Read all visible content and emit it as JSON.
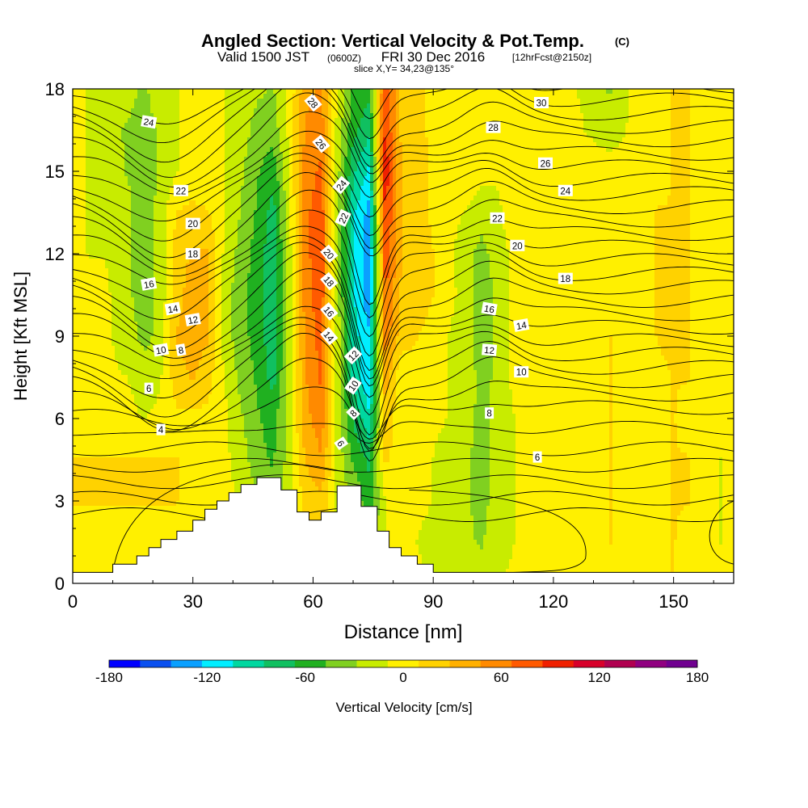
{
  "header": {
    "title": "Angled Section: Vertical Velocity & Pot.Temp.",
    "title_unit": "(C)",
    "valid_prefix": "Valid 1500 JST",
    "valid_utc": "(0600Z)",
    "valid_date": "FRI 30 Dec 2016",
    "forecast": "[12hrFcst@2150z]",
    "slice": "slice X,Y= 34,23@135°"
  },
  "chart_data": {
    "type": "heatmap",
    "title": "Angled Section: Vertical Velocity & Pot.Temp.",
    "xlabel": "Distance [nm]",
    "ylabel": "Height [Kft MSL]",
    "xlim": [
      0,
      165
    ],
    "ylim": [
      0,
      18
    ],
    "x_ticks": [
      0,
      30,
      60,
      90,
      120,
      150
    ],
    "y_ticks": [
      0,
      3,
      6,
      9,
      12,
      15,
      18
    ],
    "colorbar": {
      "label": "Vertical Velocity [cm/s]",
      "tick_values": [
        -180,
        -120,
        -60,
        0,
        60,
        120,
        180
      ],
      "bounds": [
        -180,
        180
      ],
      "colors": [
        "#0000ff",
        "#0a50f0",
        "#0aa0ff",
        "#00eeff",
        "#00d8a0",
        "#10c060",
        "#20b020",
        "#80d020",
        "#c8ec00",
        "#fff000",
        "#ffd200",
        "#ffb000",
        "#ff8a00",
        "#ff5a00",
        "#f02000",
        "#d8002a",
        "#b00050",
        "#900080",
        "#700090"
      ]
    },
    "vertical_velocity_cm_s": {
      "x": [
        0,
        4,
        8,
        14,
        18,
        22,
        26,
        30,
        34,
        38,
        42,
        46,
        50,
        54,
        58,
        62,
        66,
        70,
        74,
        78,
        82,
        86,
        90,
        94,
        98,
        102,
        106,
        110,
        114,
        118,
        122,
        126,
        130,
        134,
        138,
        142,
        146,
        150,
        154,
        158,
        162,
        165
      ],
      "y": [
        0,
        1.5,
        3,
        4.5,
        6,
        7.5,
        9,
        10.5,
        12,
        13.5,
        15,
        16.5,
        18
      ],
      "rows": [
        [
          5,
          5,
          5,
          5,
          5,
          5,
          5,
          5,
          5,
          5,
          5,
          5,
          5,
          5,
          5,
          5,
          5,
          5,
          5,
          5,
          5,
          -5,
          -10,
          -10,
          -15,
          -20,
          -10,
          -5,
          -5,
          -5,
          -5,
          5,
          5,
          5,
          -5,
          -5,
          5,
          10,
          5,
          -5,
          -5,
          -5
        ],
        [
          5,
          5,
          5,
          5,
          5,
          5,
          5,
          5,
          5,
          5,
          5,
          -5,
          -25,
          -10,
          10,
          10,
          -10,
          -20,
          -40,
          -10,
          -5,
          -10,
          -15,
          -20,
          -25,
          -30,
          -20,
          -10,
          -5,
          -5,
          -5,
          5,
          5,
          10,
          5,
          -5,
          5,
          10,
          5,
          -5,
          -10,
          -5
        ],
        [
          10,
          10,
          10,
          10,
          10,
          10,
          10,
          5,
          5,
          -5,
          -10,
          -25,
          -40,
          -15,
          15,
          25,
          -15,
          -30,
          -60,
          -10,
          -5,
          -5,
          -10,
          -20,
          -25,
          -35,
          -20,
          -10,
          -5,
          -5,
          -5,
          5,
          5,
          10,
          5,
          -5,
          5,
          10,
          10,
          -5,
          -10,
          -5
        ],
        [
          10,
          10,
          10,
          10,
          10,
          10,
          10,
          5,
          5,
          -5,
          -20,
          -40,
          -50,
          -20,
          30,
          45,
          -15,
          -50,
          -70,
          15,
          -5,
          -5,
          -10,
          -20,
          -25,
          -35,
          -20,
          -10,
          -5,
          -5,
          -5,
          5,
          5,
          10,
          5,
          -5,
          5,
          10,
          10,
          -5,
          -10,
          -5
        ],
        [
          5,
          5,
          5,
          -5,
          -10,
          -5,
          5,
          5,
          5,
          -5,
          -25,
          -45,
          -55,
          -20,
          40,
          60,
          -15,
          -70,
          -100,
          25,
          -5,
          -5,
          -5,
          -10,
          -20,
          -35,
          -20,
          -10,
          -5,
          -5,
          -5,
          5,
          5,
          10,
          5,
          -5,
          5,
          10,
          5,
          -5,
          -5,
          -5
        ],
        [
          5,
          5,
          -5,
          -10,
          -20,
          -10,
          20,
          30,
          15,
          -10,
          -35,
          -50,
          -75,
          -20,
          45,
          70,
          -15,
          -90,
          -120,
          40,
          -5,
          5,
          5,
          -10,
          -15,
          -35,
          -25,
          -5,
          5,
          5,
          5,
          5,
          5,
          10,
          5,
          -5,
          5,
          10,
          10,
          5,
          -5,
          -5
        ],
        [
          -5,
          -5,
          -5,
          -20,
          -35,
          -20,
          30,
          40,
          30,
          -20,
          -40,
          -55,
          -80,
          -20,
          50,
          75,
          -15,
          -95,
          -120,
          60,
          20,
          10,
          5,
          -10,
          -20,
          -40,
          -25,
          -5,
          5,
          5,
          5,
          5,
          5,
          10,
          5,
          5,
          10,
          15,
          10,
          5,
          -5,
          -5
        ],
        [
          -5,
          -5,
          -5,
          -25,
          -40,
          -20,
          20,
          40,
          30,
          -20,
          -40,
          -60,
          -80,
          -20,
          55,
          80,
          -20,
          -100,
          -140,
          70,
          25,
          15,
          10,
          -5,
          -15,
          -40,
          -25,
          -5,
          5,
          5,
          5,
          5,
          5,
          5,
          5,
          5,
          10,
          15,
          10,
          5,
          -5,
          -5
        ],
        [
          -5,
          -10,
          -10,
          -25,
          -40,
          -20,
          20,
          30,
          30,
          -15,
          -35,
          -55,
          -80,
          -20,
          60,
          80,
          -20,
          -100,
          -140,
          80,
          30,
          20,
          10,
          -5,
          -20,
          -35,
          -20,
          -5,
          5,
          5,
          5,
          5,
          5,
          5,
          5,
          5,
          10,
          15,
          10,
          5,
          -5,
          -5
        ],
        [
          -5,
          -10,
          -15,
          -25,
          -40,
          -20,
          10,
          15,
          10,
          -10,
          -30,
          -50,
          -75,
          -15,
          60,
          80,
          -20,
          -100,
          -130,
          90,
          30,
          20,
          5,
          -5,
          -10,
          -20,
          -15,
          5,
          5,
          5,
          5,
          5,
          5,
          5,
          5,
          5,
          10,
          10,
          10,
          5,
          -5,
          -5
        ],
        [
          -5,
          -10,
          -20,
          -30,
          -40,
          -25,
          -10,
          -5,
          -5,
          -10,
          -25,
          -45,
          -60,
          -10,
          55,
          70,
          -20,
          -80,
          -110,
          100,
          30,
          20,
          5,
          5,
          5,
          -5,
          -5,
          5,
          5,
          5,
          5,
          5,
          5,
          5,
          5,
          5,
          5,
          10,
          10,
          5,
          -5,
          -5
        ],
        [
          -5,
          -10,
          -25,
          -30,
          -35,
          -25,
          -10,
          -5,
          -5,
          -10,
          -20,
          -35,
          -40,
          -5,
          50,
          60,
          -15,
          -60,
          -80,
          90,
          25,
          15,
          5,
          5,
          5,
          5,
          5,
          5,
          5,
          5,
          5,
          -5,
          -15,
          -25,
          -10,
          5,
          5,
          10,
          10,
          5,
          -5,
          -5
        ],
        [
          -5,
          -10,
          -20,
          -25,
          -30,
          -20,
          -10,
          -5,
          -5,
          -10,
          -15,
          -25,
          -30,
          -5,
          40,
          50,
          -10,
          -50,
          -60,
          80,
          25,
          15,
          5,
          5,
          5,
          5,
          5,
          5,
          5,
          5,
          5,
          -10,
          -20,
          -30,
          -15,
          5,
          5,
          10,
          10,
          5,
          -5,
          -5
        ]
      ]
    },
    "potential_temperature_contour_levels_C": [
      4,
      6,
      8,
      10,
      12,
      14,
      16,
      18,
      20,
      22,
      24,
      26,
      28,
      30
    ],
    "potential_temperature_labels": [
      "4",
      "6",
      "8",
      "10",
      "12",
      "14",
      "16",
      "18",
      "20",
      "22",
      "24",
      "26",
      "28",
      "30"
    ],
    "terrain_profile": {
      "x": [
        0,
        10,
        10,
        16,
        16,
        19,
        19,
        22,
        22,
        26,
        26,
        30,
        30,
        33,
        33,
        36,
        36,
        39,
        39,
        42,
        42,
        46,
        46,
        52,
        52,
        56,
        56,
        59,
        59,
        62,
        62,
        66,
        66,
        72,
        72,
        76,
        76,
        79,
        79,
        82,
        82,
        86,
        86,
        90,
        90,
        165
      ],
      "height_kft": [
        0.4,
        0.4,
        0.7,
        0.7,
        1.0,
        1.0,
        1.3,
        1.3,
        1.6,
        1.6,
        1.9,
        1.9,
        2.3,
        2.3,
        2.7,
        2.7,
        3.0,
        3.0,
        3.3,
        3.3,
        3.6,
        3.6,
        3.85,
        3.85,
        3.4,
        3.4,
        2.6,
        2.6,
        2.3,
        2.3,
        2.6,
        2.6,
        3.55,
        3.55,
        2.8,
        2.8,
        1.9,
        1.9,
        1.3,
        1.3,
        1.0,
        1.0,
        0.7,
        0.7,
        0.4,
        0.4
      ]
    }
  }
}
